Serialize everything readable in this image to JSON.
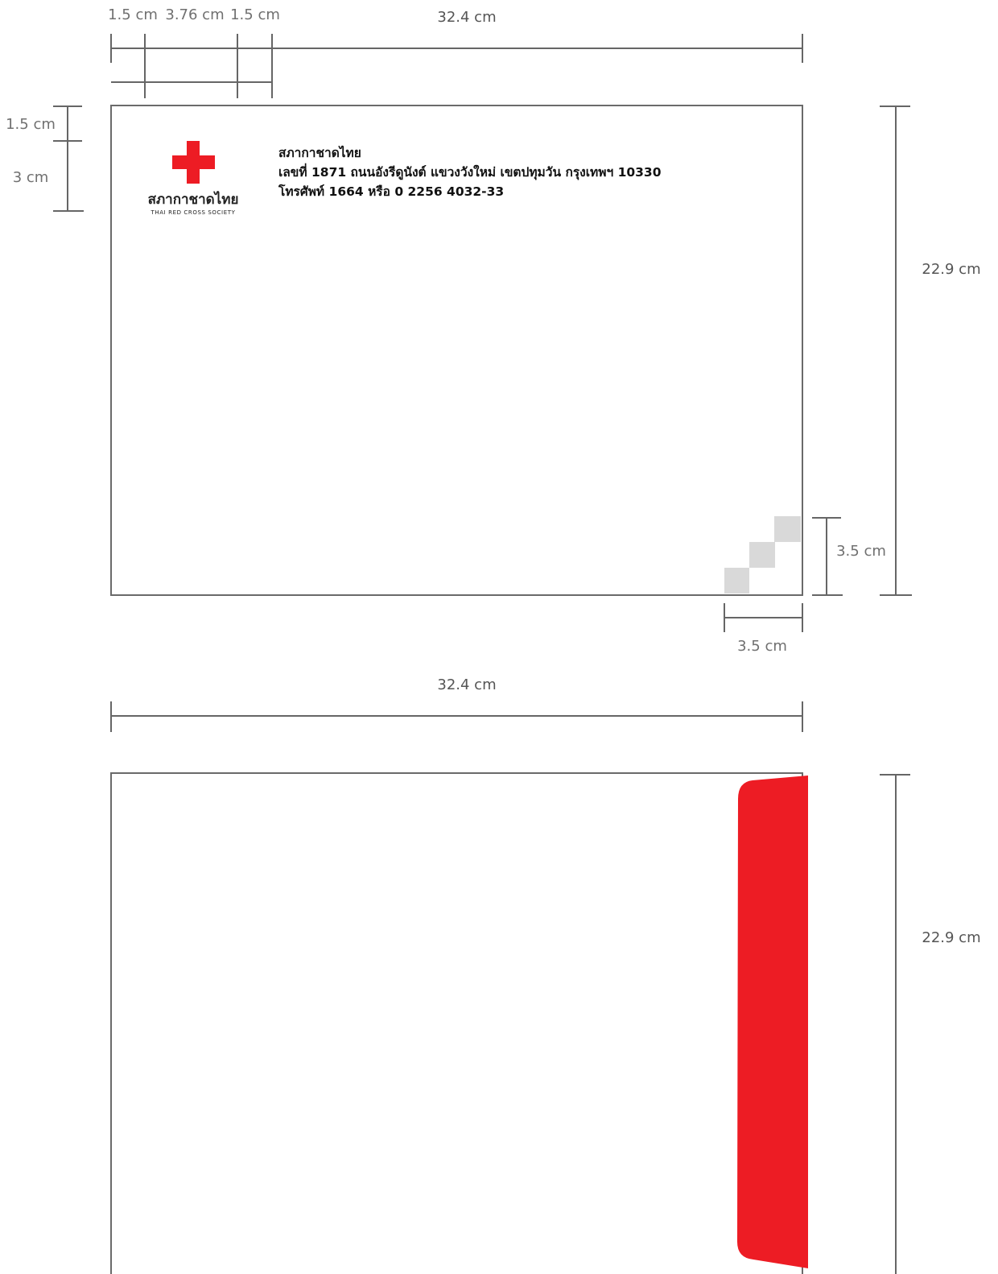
{
  "front": {
    "width_label": "32.4  cm",
    "height_label": "22.9 cm",
    "margin_labels": [
      "1.5 cm",
      "3.76 cm",
      "1.5 cm"
    ],
    "top_margin_label": "1.5 cm",
    "logo_height_label": "3 cm",
    "corner_height_label": "3.5 cm",
    "corner_width_label": "3.5 cm",
    "logo": {
      "name_th": "สภากาชาดไทย",
      "name_en": "THAI RED CROSS SOCIETY"
    },
    "address_lines": [
      "สภากาชาดไทย",
      "เลขที่ 1871 ถนนอังรีดูนังต์ แขวงวังใหม่ เขตปทุมวัน กรุงเทพฯ 10330",
      "โทรศัพท์ 1664 หรือ 0 2256 4032-33"
    ]
  },
  "back": {
    "width_label": "32.4  cm",
    "height_label": "22.9 cm"
  },
  "colors": {
    "brand_red": "#ED1C24",
    "corner_gray": "#D9D9D9",
    "line_gray": "#666666"
  }
}
